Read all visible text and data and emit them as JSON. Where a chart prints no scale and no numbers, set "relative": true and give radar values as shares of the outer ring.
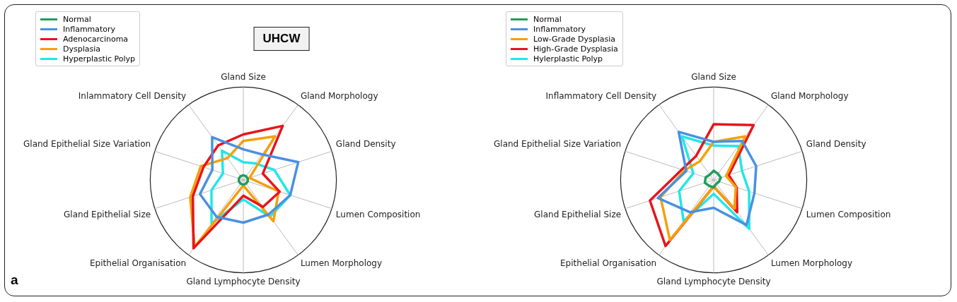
{
  "chart_data": [
    {
      "type": "radar",
      "title": "UHCW",
      "relative": true,
      "legend": "top left",
      "grid": true,
      "marker": "none",
      "categories": [
        "Gland Size",
        "Gland Morphology",
        "Gland Density",
        "Lumen Composition",
        "Lumen Morphology",
        "Gland Lymphocyte Density",
        "Epithelial Organisation",
        "Gland Epithelial Size",
        "Gland Epithelial Size Variation",
        "Inlammatory Cell Density"
      ],
      "series": [
        {
          "name": "Normal",
          "color": "#1f9e5a",
          "values": [
            0.05,
            0.05,
            0.05,
            0.05,
            0.05,
            0.05,
            0.05,
            0.05,
            0.05,
            0.05
          ]
        },
        {
          "name": "Inflammatory",
          "color": "#4a90e2",
          "values": [
            0.33,
            0.34,
            0.62,
            0.53,
            0.46,
            0.46,
            0.49,
            0.49,
            0.35,
            0.57
          ]
        },
        {
          "name": "Adenocarcinoma",
          "color": "#e8141b",
          "values": [
            0.49,
            0.72,
            0.22,
            0.41,
            0.36,
            0.17,
            0.91,
            0.57,
            0.45,
            0.46
          ]
        },
        {
          "name": "Dysplasia",
          "color": "#f5a00a",
          "values": [
            0.42,
            0.58,
            0.07,
            0.4,
            0.55,
            0.06,
            0.89,
            0.6,
            0.48,
            0.29
          ]
        },
        {
          "name": "Hyperplastic Polyp",
          "color": "#22e6e8",
          "values": [
            0.19,
            0.22,
            0.35,
            0.53,
            0.49,
            0.21,
            0.58,
            0.36,
            0.23,
            0.39
          ]
        }
      ]
    },
    {
      "type": "radar",
      "relative": true,
      "legend": "top left",
      "grid": true,
      "marker": "none",
      "categories": [
        "Gland Size",
        "Gland Morphology",
        "Gland Density",
        "Lumen Composition",
        "Lumen Morphology",
        "Gland Lymphocyte Density",
        "Epithelial Organisation",
        "Gland Epithelial Size",
        "Gland Epithelial Size Variation",
        "Inflammatory Cell Density"
      ],
      "series": [
        {
          "name": "Normal",
          "color": "#1f9e5a",
          "values": [
            0.1,
            0.08,
            0.08,
            0.06,
            0.05,
            0.08,
            0.08,
            0.1,
            0.09,
            0.07
          ]
        },
        {
          "name": "Inflammatory",
          "color": "#4a90e2",
          "values": [
            0.41,
            0.52,
            0.48,
            0.46,
            0.6,
            0.3,
            0.43,
            0.63,
            0.31,
            0.64
          ]
        },
        {
          "name": "Low-Grade Dysplasia",
          "color": "#f5a00a",
          "values": [
            0.41,
            0.58,
            0.14,
            0.25,
            0.38,
            0.07,
            0.8,
            0.6,
            0.33,
            0.25
          ]
        },
        {
          "name": "High-Grade Dysplasia",
          "color": "#e8141b",
          "values": [
            0.6,
            0.73,
            0.17,
            0.26,
            0.43,
            0.07,
            0.88,
            0.72,
            0.36,
            0.32
          ]
        },
        {
          "name": "Hylerplastic Polyp",
          "color": "#22e6e8",
          "values": [
            0.37,
            0.45,
            0.32,
            0.4,
            0.65,
            0.15,
            0.55,
            0.39,
            0.23,
            0.58
          ]
        }
      ],
      "annotations": [
        "a"
      ]
    }
  ]
}
